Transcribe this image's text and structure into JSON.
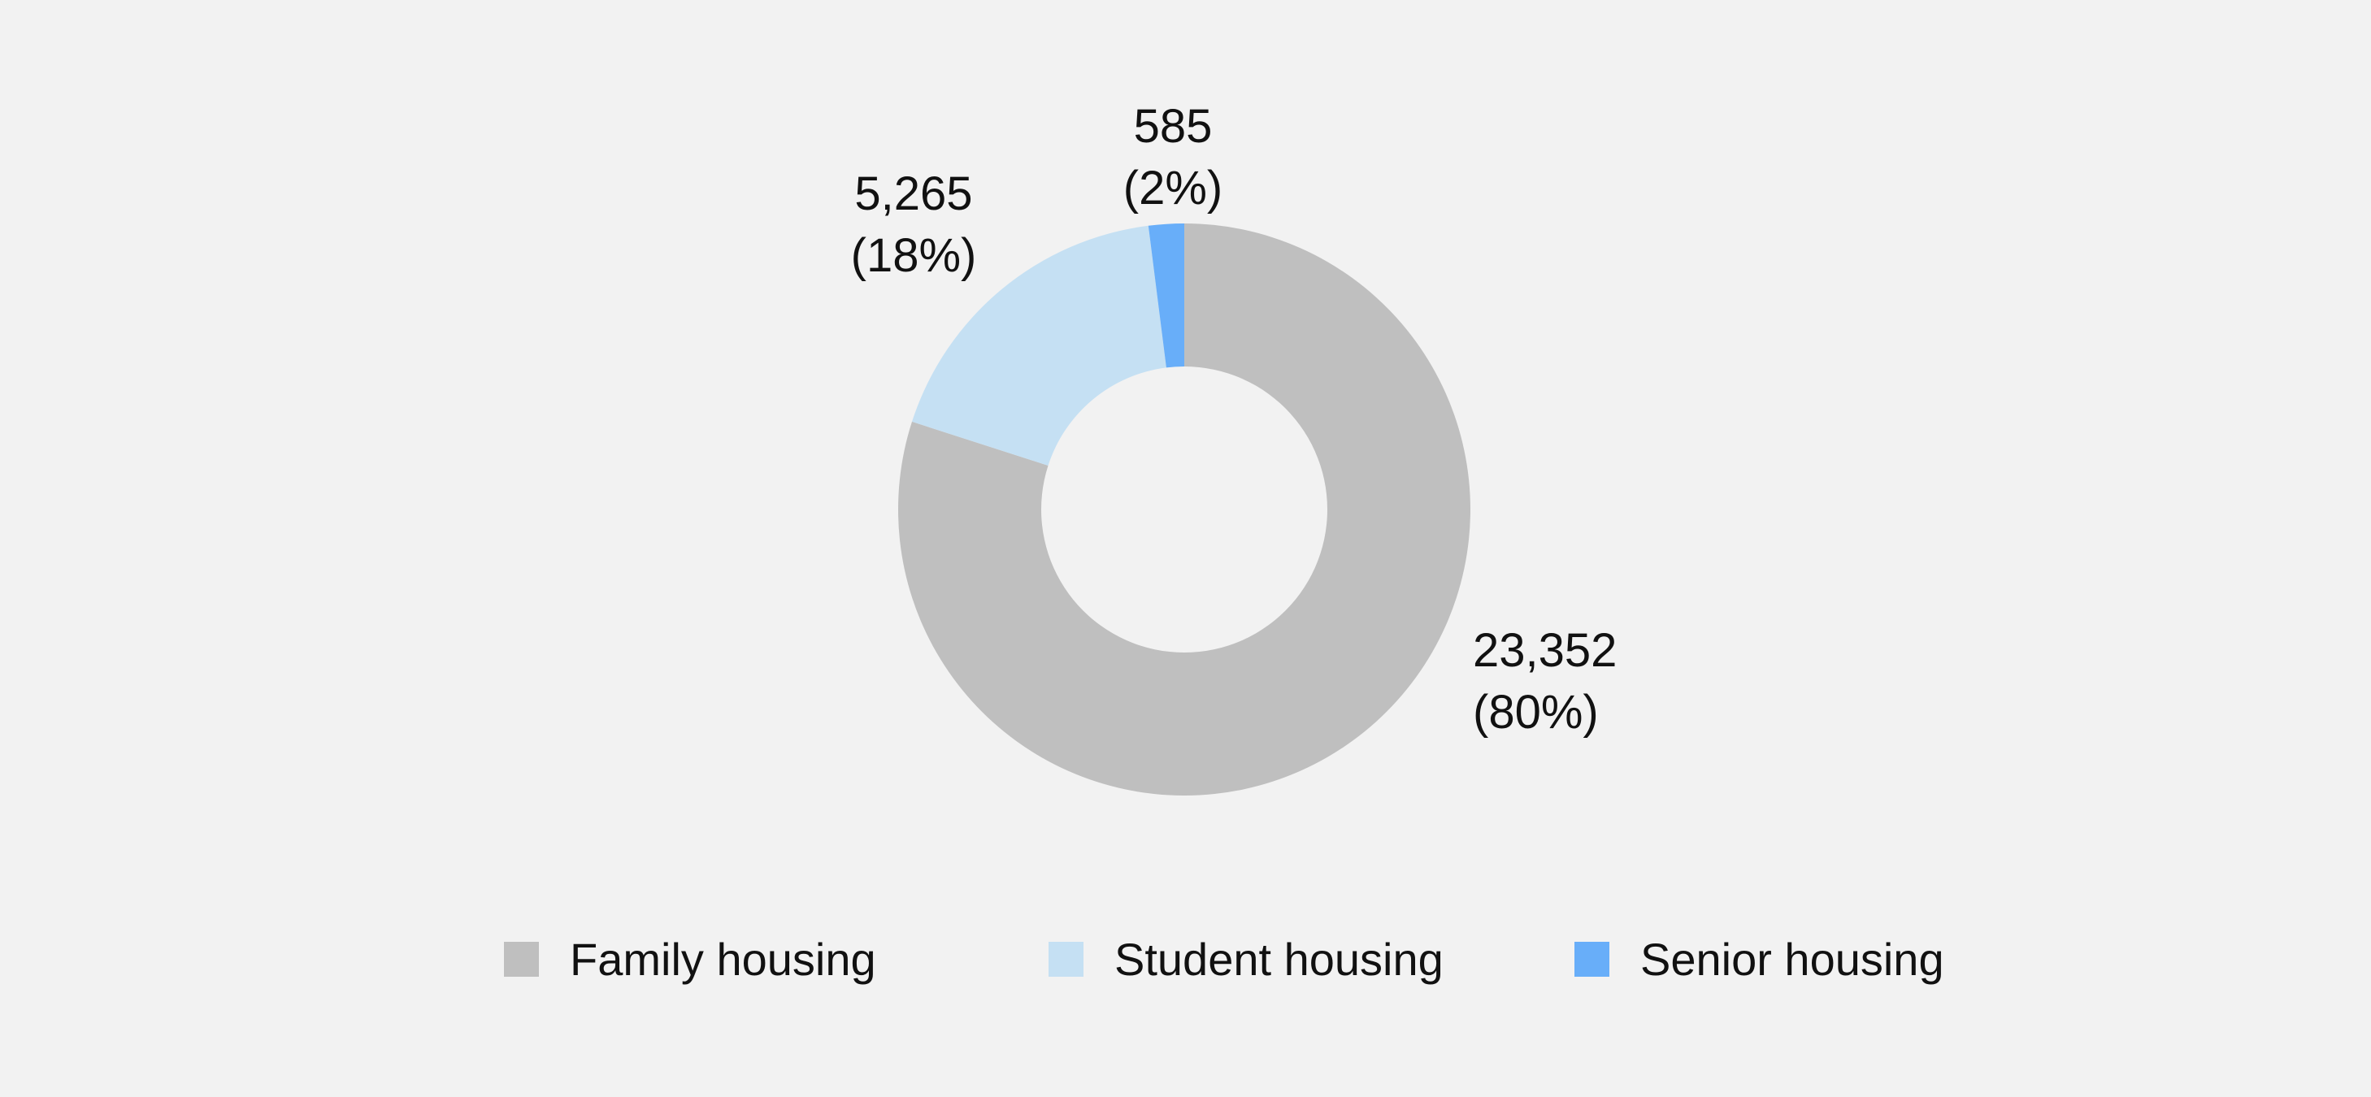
{
  "chart_data": {
    "type": "pie",
    "donut": true,
    "legend_position": "bottom",
    "series": [
      {
        "name": "Family housing",
        "value": 23352,
        "percent": 80,
        "color": "#bfbfbf",
        "label_value": "23,352",
        "label_percent": "(80%)"
      },
      {
        "name": "Student housing",
        "value": 5265,
        "percent": 18,
        "color": "#c5e0f3",
        "label_value": "5,265",
        "label_percent": "(18%)"
      },
      {
        "name": "Senior housing",
        "value": 585,
        "percent": 2,
        "color": "#68aef9",
        "label_value": "585",
        "label_percent": "(2%)"
      }
    ]
  }
}
